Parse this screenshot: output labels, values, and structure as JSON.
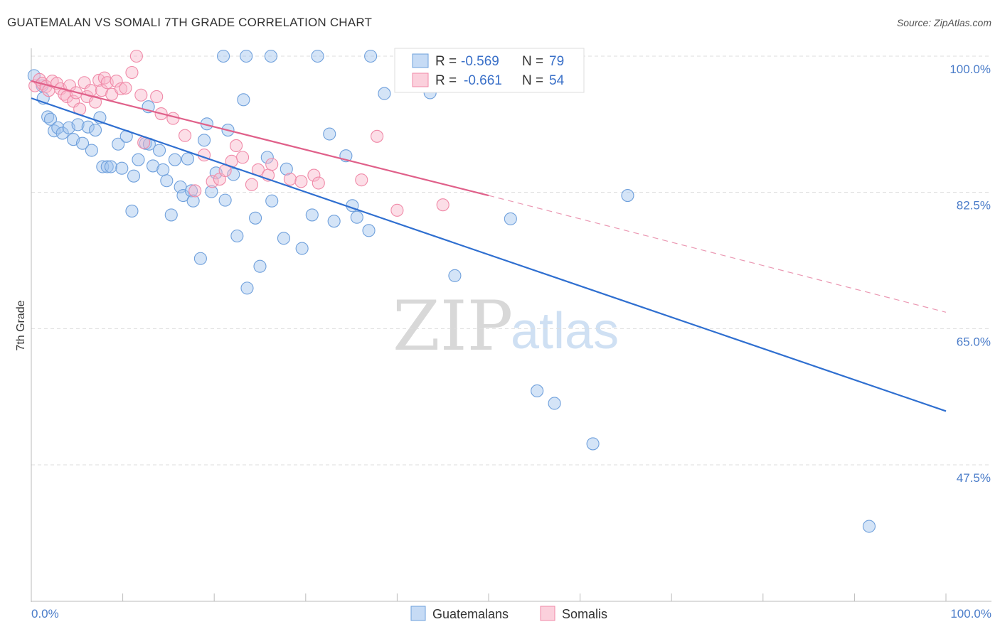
{
  "header": {
    "title": "GUATEMALAN VS SOMALI 7TH GRADE CORRELATION CHART",
    "source": "Source: ZipAtlas.com"
  },
  "watermark": {
    "part1": "ZIP",
    "part2": "atlas"
  },
  "legend": {
    "rows": [
      {
        "r_label": "R =",
        "r_value": "-0.569",
        "n_label": "N =",
        "n_value": "79",
        "color": "#6fa0dc"
      },
      {
        "r_label": "R =",
        "r_value": "-0.661",
        "n_label": "N =",
        "n_value": "54",
        "color": "#f08aa8"
      }
    ]
  },
  "bottom_legend": [
    {
      "label": "Guatemalans",
      "color": "#6fa0dc"
    },
    {
      "label": "Somalis",
      "color": "#f08aa8"
    }
  ],
  "chart_data": {
    "type": "scatter",
    "title": "GUATEMALAN VS SOMALI 7TH GRADE CORRELATION CHART",
    "xlabel": "",
    "ylabel": "7th Grade",
    "xlim": [
      0,
      100
    ],
    "ylim": [
      32.5,
      102
    ],
    "x_tick_labels": [
      "0.0%",
      "100.0%"
    ],
    "y_ticks": [
      100.0,
      82.5,
      65.0,
      47.5
    ],
    "y_tick_labels": [
      "100.0%",
      "82.5%",
      "65.0%",
      "47.5%"
    ],
    "grid": true,
    "legend_position": "top-center",
    "series": [
      {
        "name": "Guatemalans",
        "color": "#6fa0dc",
        "trend": {
          "x": [
            0,
            100
          ],
          "y": [
            94.6,
            54.4
          ]
        },
        "points": [
          [
            0.3,
            97.5
          ],
          [
            1.2,
            96.2
          ],
          [
            1.3,
            94.6
          ],
          [
            1.8,
            92.2
          ],
          [
            2.1,
            91.9
          ],
          [
            2.5,
            90.4
          ],
          [
            2.9,
            90.8
          ],
          [
            3.4,
            90.1
          ],
          [
            4.1,
            90.8
          ],
          [
            4.6,
            89.3
          ],
          [
            5.1,
            91.2
          ],
          [
            5.6,
            88.8
          ],
          [
            6.2,
            90.9
          ],
          [
            6.6,
            87.9
          ],
          [
            7.0,
            90.5
          ],
          [
            7.5,
            92.1
          ],
          [
            7.8,
            85.8
          ],
          [
            8.3,
            85.8
          ],
          [
            8.7,
            85.8
          ],
          [
            9.5,
            88.7
          ],
          [
            9.9,
            85.6
          ],
          [
            10.4,
            89.7
          ],
          [
            11.0,
            80.1
          ],
          [
            11.2,
            84.6
          ],
          [
            11.7,
            86.7
          ],
          [
            12.5,
            88.8
          ],
          [
            12.9,
            88.7
          ],
          [
            12.8,
            93.5
          ],
          [
            13.3,
            85.9
          ],
          [
            14.0,
            87.9
          ],
          [
            14.4,
            85.4
          ],
          [
            14.8,
            84.0
          ],
          [
            15.3,
            79.6
          ],
          [
            15.7,
            86.7
          ],
          [
            16.3,
            83.2
          ],
          [
            16.6,
            82.1
          ],
          [
            17.1,
            86.8
          ],
          [
            17.5,
            82.7
          ],
          [
            17.7,
            81.4
          ],
          [
            18.5,
            74.0
          ],
          [
            18.9,
            89.2
          ],
          [
            19.2,
            91.3
          ],
          [
            19.7,
            82.6
          ],
          [
            20.2,
            85.0
          ],
          [
            21.2,
            81.5
          ],
          [
            21.5,
            90.5
          ],
          [
            22.1,
            84.8
          ],
          [
            22.5,
            76.9
          ],
          [
            23.2,
            94.4
          ],
          [
            23.6,
            70.2
          ],
          [
            24.5,
            79.2
          ],
          [
            25.0,
            73.0
          ],
          [
            25.8,
            87.0
          ],
          [
            26.3,
            81.4
          ],
          [
            27.6,
            76.6
          ],
          [
            27.9,
            85.5
          ],
          [
            29.6,
            75.3
          ],
          [
            30.7,
            79.6
          ],
          [
            32.6,
            90.0
          ],
          [
            33.1,
            78.8
          ],
          [
            34.4,
            87.2
          ],
          [
            35.1,
            80.8
          ],
          [
            35.6,
            79.3
          ],
          [
            36.9,
            77.6
          ],
          [
            38.6,
            95.2
          ],
          [
            43.6,
            95.3
          ],
          [
            46.3,
            71.8
          ],
          [
            52.4,
            79.1
          ],
          [
            55.3,
            57.0
          ],
          [
            57.2,
            55.4
          ],
          [
            61.4,
            50.2
          ],
          [
            65.2,
            82.1
          ],
          [
            91.6,
            39.6
          ],
          [
            21.0,
            100.0
          ],
          [
            23.5,
            100.0
          ],
          [
            26.2,
            100.0
          ],
          [
            31.3,
            100.0
          ],
          [
            37.1,
            100.0
          ],
          [
            58.3,
            100.0
          ]
        ]
      },
      {
        "name": "Somalis",
        "color": "#f08aa8",
        "trend": {
          "x": [
            0,
            50
          ],
          "y": [
            96.8,
            82.1
          ]
        },
        "trend_dashed": {
          "x": [
            50,
            100
          ],
          "y": [
            82.1,
            67.1
          ]
        },
        "points": [
          [
            0.4,
            96.2
          ],
          [
            0.9,
            97.0
          ],
          [
            1.2,
            96.5
          ],
          [
            1.6,
            96.1
          ],
          [
            1.9,
            95.6
          ],
          [
            2.3,
            96.8
          ],
          [
            2.8,
            96.5
          ],
          [
            3.2,
            95.8
          ],
          [
            3.6,
            95.1
          ],
          [
            3.9,
            94.8
          ],
          [
            4.2,
            96.2
          ],
          [
            4.6,
            94.2
          ],
          [
            4.9,
            95.3
          ],
          [
            5.3,
            93.2
          ],
          [
            5.8,
            96.6
          ],
          [
            6.1,
            94.8
          ],
          [
            6.5,
            95.6
          ],
          [
            7.0,
            94.1
          ],
          [
            7.4,
            96.9
          ],
          [
            7.7,
            95.6
          ],
          [
            8.0,
            97.2
          ],
          [
            8.3,
            96.6
          ],
          [
            8.8,
            95.1
          ],
          [
            9.3,
            96.8
          ],
          [
            9.8,
            95.8
          ],
          [
            10.3,
            95.9
          ],
          [
            11.0,
            97.9
          ],
          [
            11.5,
            100.0
          ],
          [
            12.0,
            95.0
          ],
          [
            12.3,
            88.9
          ],
          [
            13.7,
            94.8
          ],
          [
            14.2,
            92.6
          ],
          [
            15.5,
            92.0
          ],
          [
            16.8,
            89.8
          ],
          [
            17.9,
            82.7
          ],
          [
            18.9,
            87.3
          ],
          [
            19.8,
            83.9
          ],
          [
            20.6,
            84.2
          ],
          [
            21.2,
            85.3
          ],
          [
            21.9,
            86.5
          ],
          [
            22.4,
            88.5
          ],
          [
            23.1,
            87.0
          ],
          [
            24.1,
            83.5
          ],
          [
            24.8,
            85.4
          ],
          [
            25.9,
            84.7
          ],
          [
            26.3,
            86.1
          ],
          [
            28.3,
            84.2
          ],
          [
            29.5,
            83.9
          ],
          [
            30.9,
            84.7
          ],
          [
            31.4,
            83.7
          ],
          [
            36.1,
            84.1
          ],
          [
            37.8,
            89.7
          ],
          [
            40.0,
            80.2
          ],
          [
            45.0,
            80.9
          ]
        ]
      }
    ]
  }
}
